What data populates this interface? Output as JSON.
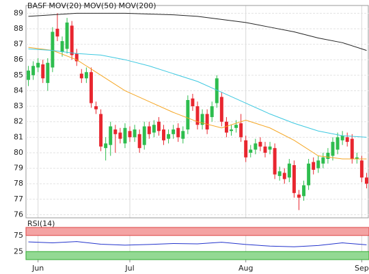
{
  "chart_data": [
    {
      "type": "candlestick",
      "categories": [
        null,
        null,
        "Jun",
        null,
        null,
        null,
        null,
        null,
        null,
        null,
        null,
        null,
        null,
        null,
        null,
        null,
        null,
        null,
        null,
        null,
        null,
        "Jul",
        null,
        null,
        null,
        null,
        null,
        null,
        null,
        null,
        null,
        null,
        null,
        null,
        null,
        null,
        null,
        null,
        null,
        null,
        null,
        null,
        null,
        null,
        null,
        "Aug",
        null,
        null,
        null,
        null,
        null,
        null,
        null,
        null,
        null,
        null,
        null,
        null,
        null,
        null,
        null,
        null,
        null,
        null,
        null,
        null,
        null,
        null,
        null,
        "Sep",
        null
      ],
      "series": [
        {
          "name": "BASF",
          "color": "#222222",
          "up_color": "#2ebd4e",
          "down_color": "#e8262f",
          "open": [
            84.7,
            85.0,
            85.5,
            85.7,
            84.5,
            85.5,
            88.0,
            86.5,
            86.7,
            88.2,
            86.4,
            85.1,
            84.8,
            85.2,
            83.0,
            82.5,
            80.3,
            80.5,
            81.5,
            81.3,
            80.6,
            81.4,
            81.0,
            81.2,
            80.5,
            81.7,
            81.3,
            82.0,
            81.5,
            80.9,
            81.2,
            81.6,
            80.9,
            81.5,
            83.5,
            83.0,
            81.8,
            82.5,
            82.3,
            83.2,
            83.6,
            82.0,
            81.4,
            81.6,
            81.9,
            80.8,
            80.0,
            80.2,
            80.7,
            80.4,
            80.2,
            80.3,
            78.5,
            78.7,
            78.4,
            79.2,
            77.3,
            77.2,
            77.9,
            79.4,
            79.0,
            79.3,
            79.6,
            79.8,
            80.2,
            80.8,
            81.0,
            80.9,
            79.6,
            79.5,
            78.4
          ],
          "high": [
            85.6,
            85.9,
            86.1,
            86.0,
            86.1,
            88.1,
            89.0,
            87.5,
            88.7,
            88.5,
            86.7,
            85.4,
            85.5,
            85.5,
            83.3,
            82.8,
            81.0,
            82.0,
            81.8,
            81.6,
            81.9,
            81.7,
            81.8,
            81.5,
            82.0,
            82.0,
            82.1,
            82.3,
            81.8,
            81.5,
            81.8,
            81.9,
            81.7,
            83.7,
            83.8,
            83.3,
            82.8,
            82.8,
            83.3,
            85.0,
            83.9,
            82.3,
            81.8,
            82.1,
            82.5,
            81.1,
            80.5,
            80.9,
            81.0,
            80.7,
            80.7,
            80.6,
            79.1,
            79.0,
            79.6,
            79.5,
            77.6,
            78.2,
            79.6,
            79.7,
            79.8,
            80.0,
            80.3,
            81.0,
            81.3,
            81.4,
            81.3,
            81.2,
            80.0,
            79.8,
            78.7
          ],
          "low": [
            84.3,
            84.7,
            85.2,
            84.5,
            84.0,
            85.2,
            87.2,
            86.2,
            86.4,
            86.0,
            85.6,
            84.5,
            84.5,
            82.9,
            82.5,
            80.1,
            79.5,
            79.8,
            80.0,
            80.6,
            80.3,
            80.7,
            80.7,
            80.0,
            80.2,
            80.9,
            81.0,
            81.1,
            80.5,
            80.6,
            80.9,
            80.7,
            80.6,
            81.2,
            82.7,
            81.5,
            81.5,
            81.2,
            82.0,
            82.9,
            81.7,
            81.0,
            81.1,
            81.3,
            80.7,
            79.4,
            79.7,
            79.9,
            80.1,
            79.7,
            79.9,
            78.3,
            78.2,
            78.0,
            78.1,
            77.1,
            76.3,
            76.9,
            77.6,
            78.6,
            78.7,
            79.0,
            79.3,
            79.5,
            79.9,
            80.5,
            80.4,
            79.3,
            79.3,
            78.1,
            77.7
          ],
          "close": [
            85.3,
            85.6,
            85.8,
            84.8,
            85.8,
            87.8,
            87.5,
            87.2,
            88.4,
            86.3,
            85.9,
            84.8,
            85.2,
            83.2,
            82.8,
            80.4,
            80.6,
            81.7,
            81.2,
            80.9,
            81.6,
            81.0,
            81.5,
            80.3,
            81.7,
            81.2,
            81.8,
            81.4,
            80.8,
            81.2,
            81.5,
            81.0,
            81.4,
            83.4,
            83.0,
            81.8,
            82.5,
            81.5,
            83.0,
            84.8,
            82.0,
            81.3,
            81.5,
            81.8,
            81.0,
            79.7,
            80.2,
            80.6,
            80.4,
            80.0,
            80.4,
            78.6,
            78.8,
            78.3,
            79.3,
            77.4,
            77.1,
            77.9,
            79.3,
            78.9,
            79.5,
            79.7,
            80.0,
            80.7,
            81.0,
            81.1,
            80.7,
            79.6,
            79.7,
            78.4,
            78.0
          ]
        },
        {
          "name": "MOV(20)",
          "color": "#f5a623",
          "x": [
            0,
            5,
            10,
            15,
            20,
            25,
            30,
            35,
            40,
            45,
            50,
            55,
            60,
            65,
            70
          ],
          "values": [
            86.8,
            86.6,
            86.0,
            85.0,
            84.0,
            83.3,
            82.6,
            82.0,
            81.6,
            82.1,
            81.6,
            80.8,
            79.8,
            79.6,
            79.6
          ]
        },
        {
          "name": "MOV(50)",
          "color": "#3cc8e0",
          "x": [
            0,
            5,
            10,
            15,
            20,
            25,
            30,
            35,
            40,
            45,
            50,
            55,
            60,
            65,
            70
          ],
          "values": [
            86.7,
            86.6,
            86.4,
            86.3,
            86.0,
            85.6,
            85.1,
            84.6,
            83.9,
            83.2,
            82.5,
            81.9,
            81.4,
            81.1,
            81.0
          ]
        },
        {
          "name": "MOV(200)",
          "color": "#222222",
          "x": [
            0,
            5,
            10,
            15,
            20,
            25,
            30,
            35,
            40,
            45,
            50,
            55,
            60,
            65,
            70
          ],
          "values": [
            88.8,
            88.9,
            89.0,
            89.0,
            89.0,
            88.95,
            88.9,
            88.8,
            88.6,
            88.4,
            88.1,
            87.8,
            87.4,
            87.1,
            86.6
          ]
        }
      ],
      "ylim": [
        75.8,
        89.5
      ],
      "yticks": [
        76,
        77,
        78,
        79,
        80,
        81,
        82,
        83,
        84,
        85,
        86,
        87,
        88,
        89
      ],
      "grid": true
    },
    {
      "type": "line",
      "series": [
        {
          "name": "RSI(14)",
          "color": "#2233cc",
          "x": [
            0,
            5,
            10,
            15,
            20,
            25,
            30,
            35,
            40,
            45,
            50,
            55,
            60,
            65,
            70
          ],
          "values": [
            55,
            52,
            56,
            48,
            45,
            47,
            50,
            49,
            54,
            47,
            42,
            40,
            44,
            52,
            46
          ]
        }
      ],
      "ylim": [
        0,
        100
      ],
      "yticks": [
        25,
        75
      ],
      "upper_band_color": "#f4a3a3",
      "lower_band_color": "#93d993",
      "grid": true
    }
  ]
}
